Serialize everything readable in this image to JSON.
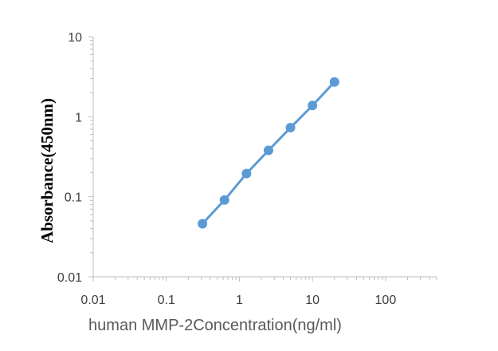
{
  "chart_data": {
    "type": "line",
    "title": "",
    "xlabel": "human MMP-2Concentration(ng/ml)",
    "ylabel": "Absorbance(450nm)",
    "xscale": "log",
    "yscale": "log",
    "xlim": [
      0.01,
      500
    ],
    "ylim": [
      0.01,
      10
    ],
    "xticks": [
      "0.01",
      "0.1",
      "1",
      "10",
      "100"
    ],
    "yticks": [
      "0.01",
      "0.1",
      "1",
      "10"
    ],
    "grid": false,
    "legend": "none",
    "color": "#5b9bd5",
    "series": [
      {
        "x": [
          0.3125,
          0.625,
          1.25,
          2.5,
          5,
          10,
          20
        ],
        "y": [
          0.046,
          0.091,
          0.195,
          0.38,
          0.73,
          1.38,
          2.72
        ]
      }
    ]
  }
}
